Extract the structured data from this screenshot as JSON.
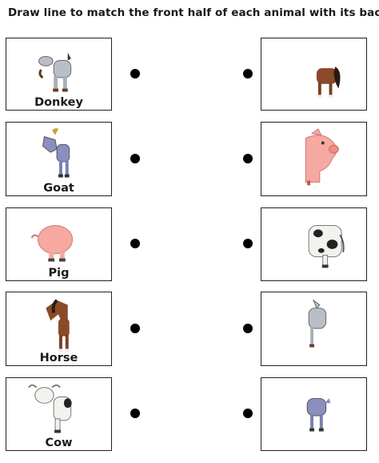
{
  "instruction": "Draw line to match the front half of each animal with its back.",
  "rows": [
    {
      "label": "Donkey"
    },
    {
      "label": "Goat"
    },
    {
      "label": "Pig"
    },
    {
      "label": "Horse"
    },
    {
      "label": "Cow"
    }
  ]
}
